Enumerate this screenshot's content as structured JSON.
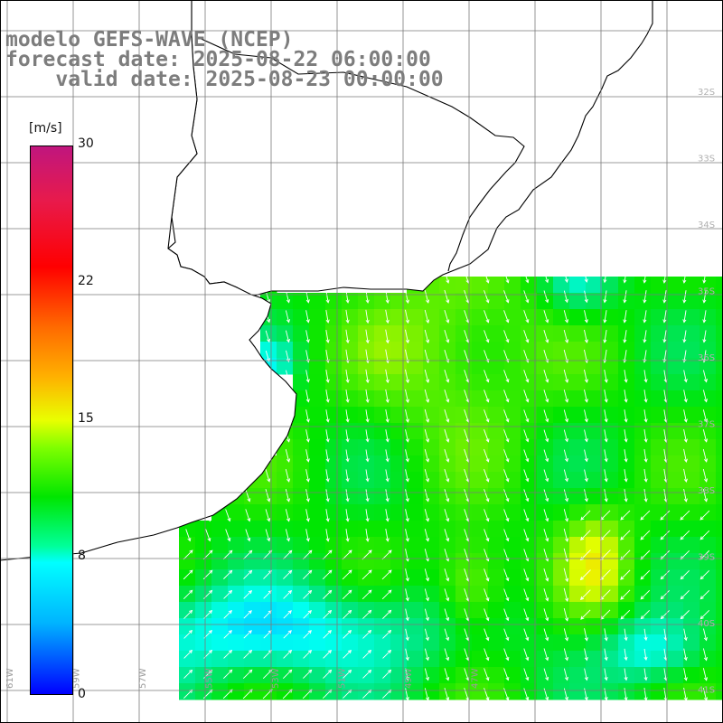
{
  "title": {
    "line1": "modelo GEFS-WAVE (NCEP)",
    "line2": "forecast date: 2025-08-22 06:00:00",
    "line3": "valid date: 2025-08-23 00:00:00"
  },
  "colorbar": {
    "units": "[m/s]",
    "ticks": [
      "30",
      "22",
      "15",
      "8",
      "0"
    ],
    "min": 0,
    "max": 30,
    "colors": [
      "#0000ff",
      "#00b4ff",
      "#00ffff",
      "#00e600",
      "#7fff00",
      "#e9ff00",
      "#ffb000",
      "#ff6a00",
      "#ff0000",
      "#c0167e"
    ]
  },
  "map": {
    "land_color": "#ffffff",
    "coastline_color": "#000000",
    "gridline_color": "#7a7a7a",
    "arrow_color": "#ffffff",
    "lon_labels": [
      "61W",
      "59W",
      "57W",
      "55W",
      "53W",
      "51W",
      "49W",
      "47W"
    ],
    "lat_labels": [
      "32S",
      "33S",
      "34S",
      "35S",
      "36S",
      "37S",
      "38S",
      "39S",
      "40S",
      "41S"
    ]
  }
}
